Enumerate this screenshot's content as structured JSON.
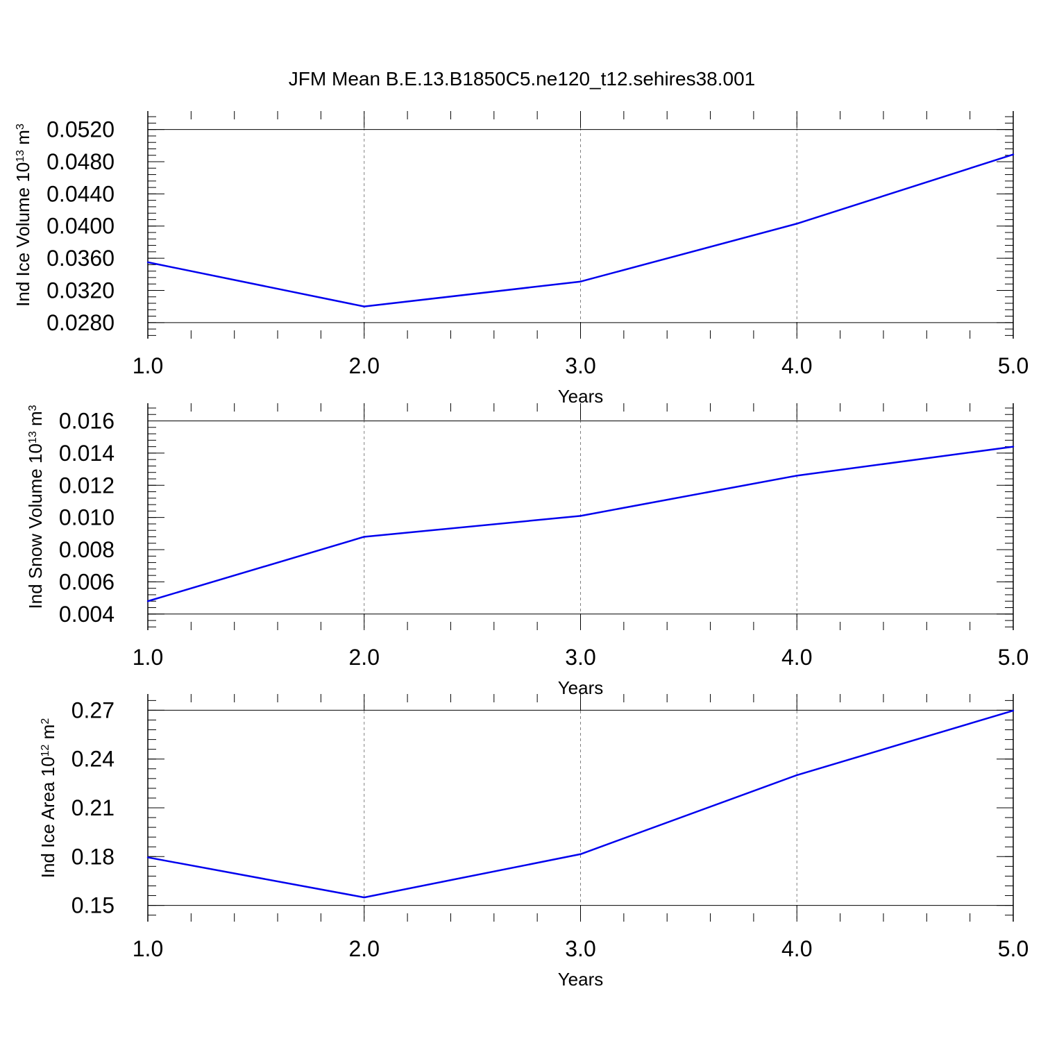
{
  "figure_title": "JFM Mean B.E.13.B1850C5.ne120_t12.sehires38.001",
  "colors": {
    "line": "#0000ee",
    "axis": "#000000",
    "grid": "#808080"
  },
  "chart_data": [
    {
      "type": "line",
      "title": "JFM Mean B.E.13.B1850C5.ne120_t12.sehires38.001",
      "xlabel": "Years",
      "ylabel": {
        "base": "Ind Ice Volume 10",
        "exp": "13",
        "unit": " m",
        "unit_exp": "3"
      },
      "x": [
        1,
        2,
        3,
        4,
        5
      ],
      "x_tick_labels": [
        "1.0",
        "2.0",
        "3.0",
        "4.0",
        "5.0"
      ],
      "xlim": [
        1,
        5
      ],
      "series": [
        {
          "name": "Ind Ice Volume",
          "values": [
            0.0355,
            0.03,
            0.0331,
            0.0403,
            0.0489
          ]
        }
      ],
      "ylim": [
        0.026,
        0.0543
      ],
      "y_ticks": [
        0.028,
        0.032,
        0.036,
        0.04,
        0.044,
        0.048,
        0.052
      ],
      "y_tick_labels": [
        "0.0280",
        "0.0320",
        "0.0360",
        "0.0400",
        "0.0440",
        "0.0480",
        "0.0520"
      ],
      "y_minor_step": 0.0008,
      "grid": "vertical-dashed"
    },
    {
      "type": "line",
      "xlabel": "Years",
      "ylabel": {
        "base": "Ind Snow Volume 10",
        "exp": "13",
        "unit": " m",
        "unit_exp": "3"
      },
      "x": [
        1,
        2,
        3,
        4,
        5
      ],
      "x_tick_labels": [
        "1.0",
        "2.0",
        "3.0",
        "4.0",
        "5.0"
      ],
      "xlim": [
        1,
        5
      ],
      "series": [
        {
          "name": "Ind Snow Volume",
          "values": [
            0.0048,
            0.0088,
            0.0101,
            0.0126,
            0.0144
          ]
        }
      ],
      "ylim": [
        0.003,
        0.0171
      ],
      "y_ticks": [
        0.004,
        0.006,
        0.008,
        0.01,
        0.012,
        0.014,
        0.016
      ],
      "y_tick_labels": [
        "0.004",
        "0.006",
        "0.008",
        "0.010",
        "0.012",
        "0.014",
        "0.016"
      ],
      "y_minor_step": 0.0004,
      "grid": "vertical-dashed"
    },
    {
      "type": "line",
      "xlabel": "Years",
      "ylabel": {
        "base": "Ind Ice Area 10",
        "exp": "12",
        "unit": " m",
        "unit_exp": "2"
      },
      "x": [
        1,
        2,
        3,
        4,
        5
      ],
      "x_tick_labels": [
        "1.0",
        "2.0",
        "3.0",
        "4.0",
        "5.0"
      ],
      "xlim": [
        1,
        5
      ],
      "series": [
        {
          "name": "Ind Ice Area",
          "values": [
            0.1795,
            0.1549,
            0.1815,
            0.2301,
            0.2698
          ]
        }
      ],
      "ylim": [
        0.14,
        0.28
      ],
      "y_ticks": [
        0.15,
        0.18,
        0.21,
        0.24,
        0.27
      ],
      "y_tick_labels": [
        "0.15",
        "0.18",
        "0.21",
        "0.24",
        "0.27"
      ],
      "y_minor_step": 0.006,
      "grid": "vertical-dashed"
    }
  ]
}
